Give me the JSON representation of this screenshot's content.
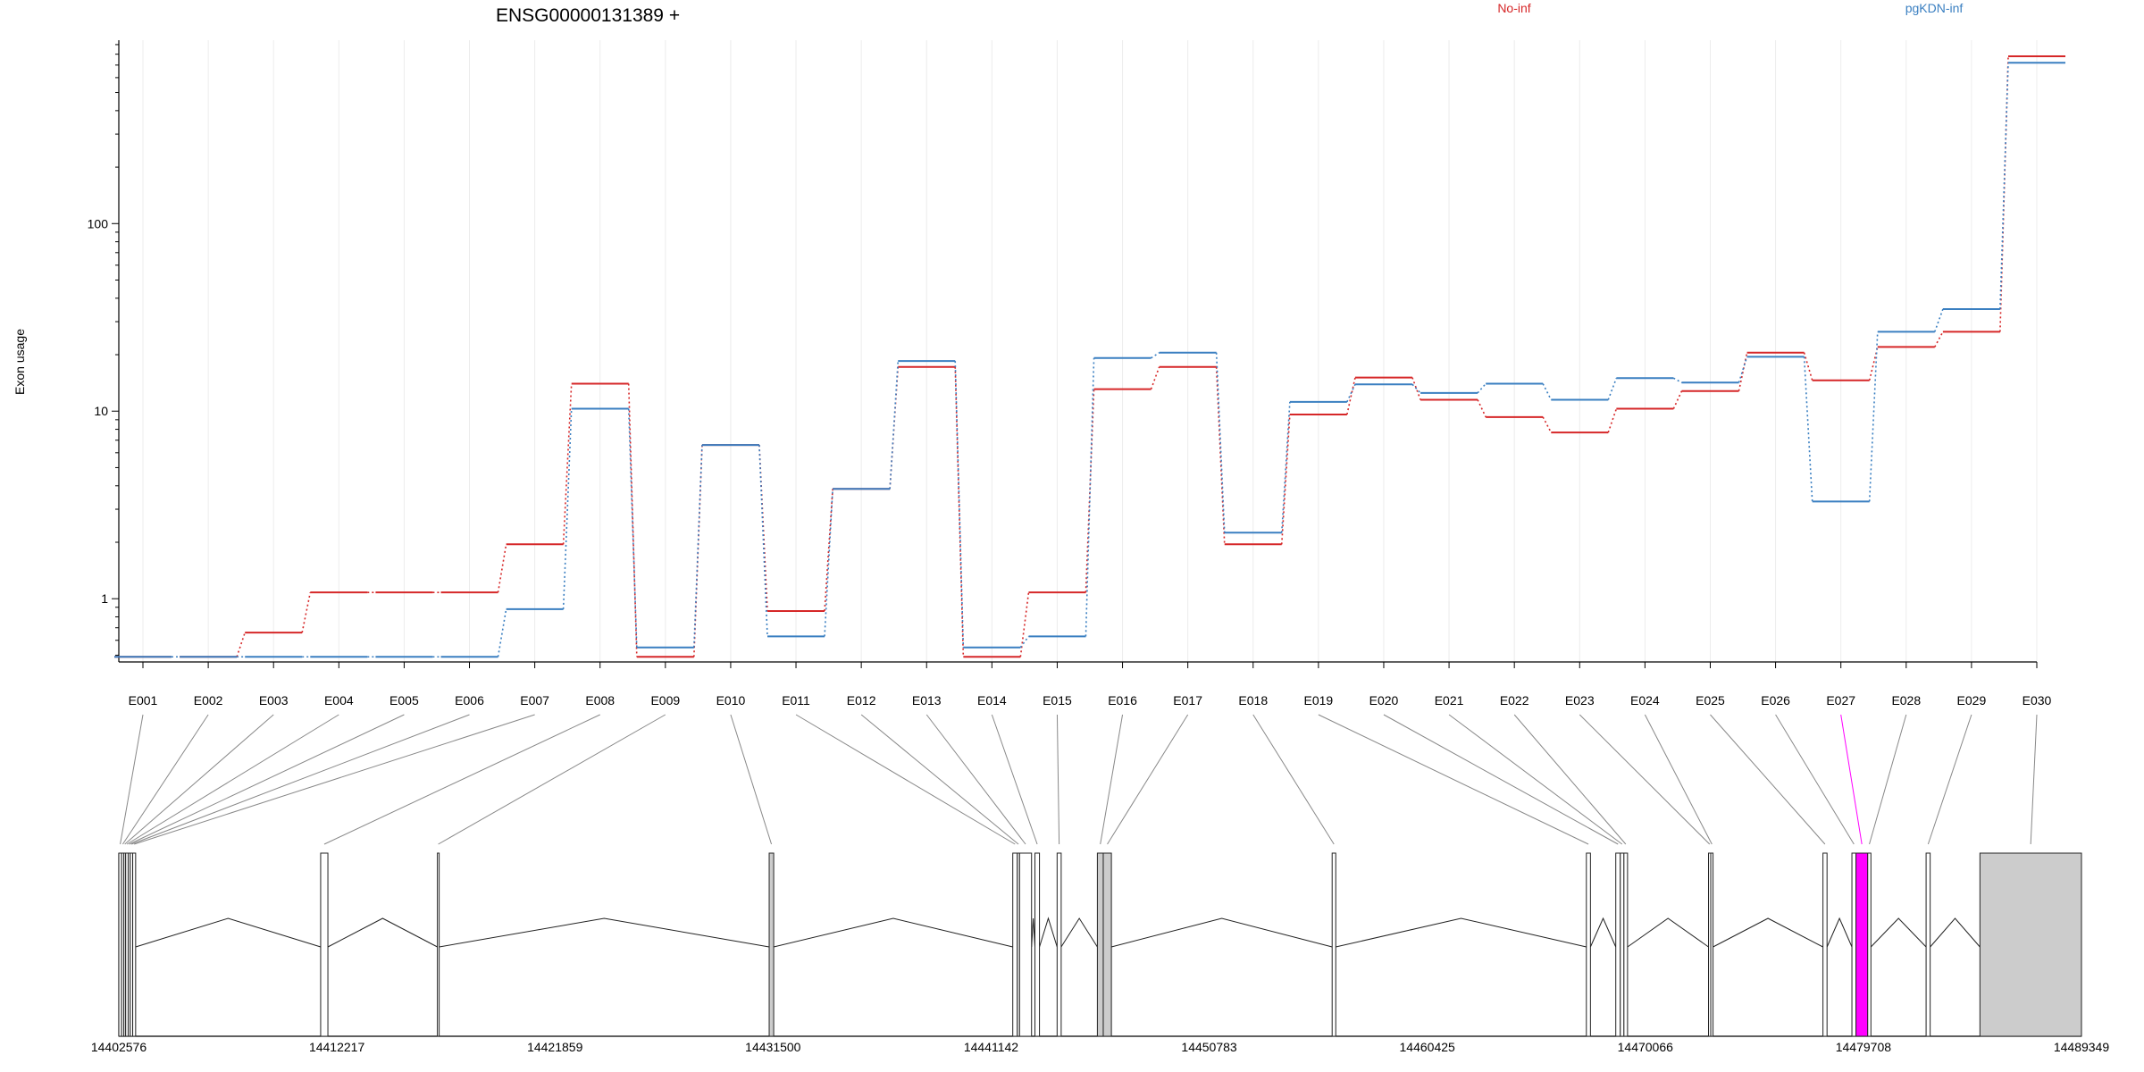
{
  "chart_data": {
    "type": "line",
    "title": "ENSG00000131389 +",
    "ylabel": "Exon usage",
    "yscale": "log",
    "yticks": [
      1,
      10,
      100
    ],
    "ylim": [
      0.46,
      950
    ],
    "grid": "x",
    "categories": [
      "E001",
      "E002",
      "E003",
      "E004",
      "E005",
      "E006",
      "E007",
      "E008",
      "E009",
      "E010",
      "E011",
      "E012",
      "E013",
      "E014",
      "E015",
      "E016",
      "E017",
      "E018",
      "E019",
      "E020",
      "E021",
      "E022",
      "E023",
      "E024",
      "E025",
      "E026",
      "E027",
      "E028",
      "E029",
      "E030"
    ],
    "highlight_exon": "E027",
    "series": [
      {
        "name": "No-inf",
        "color": "#d62728",
        "values": [
          0.49,
          0.49,
          0.66,
          1.08,
          1.08,
          1.08,
          1.95,
          14.0,
          0.49,
          6.6,
          0.86,
          3.85,
          17.2,
          0.49,
          1.08,
          13.1,
          17.2,
          1.95,
          9.6,
          15.1,
          11.5,
          9.3,
          7.7,
          10.3,
          12.8,
          20.5,
          14.6,
          22.0,
          26.5,
          780
        ]
      },
      {
        "name": "pgKDN-inf",
        "color": "#3a7fc1",
        "values": [
          0.49,
          0.49,
          0.49,
          0.49,
          0.49,
          0.49,
          0.88,
          10.3,
          0.55,
          6.6,
          0.63,
          3.85,
          18.5,
          0.55,
          0.63,
          19.2,
          20.5,
          2.25,
          11.2,
          13.9,
          12.5,
          14.0,
          11.5,
          15.0,
          14.2,
          19.5,
          3.3,
          26.5,
          35.0,
          720
        ]
      }
    ],
    "gene_model": {
      "axis_labels": [
        "14402576",
        "14412217",
        "14421859",
        "14431500",
        "14441142",
        "14450783",
        "14460425",
        "14470066",
        "14479708",
        "14489349"
      ],
      "exons": [
        {
          "id": "E001",
          "start": 14402576,
          "end": 14402700,
          "fill": "#ffffff"
        },
        {
          "id": "E002",
          "start": 14402700,
          "end": 14402800,
          "fill": "#ffffff"
        },
        {
          "id": "E003",
          "start": 14402800,
          "end": 14402880,
          "fill": "#ffffff"
        },
        {
          "id": "E004",
          "start": 14402880,
          "end": 14402990,
          "fill": "#ffffff"
        },
        {
          "id": "E005",
          "start": 14402990,
          "end": 14403080,
          "fill": "#ffffff"
        },
        {
          "id": "E006",
          "start": 14403080,
          "end": 14403190,
          "fill": "#ffffff"
        },
        {
          "id": "E007",
          "start": 14403190,
          "end": 14403320,
          "fill": "#ffffff"
        },
        {
          "id": "E008",
          "start": 14411500,
          "end": 14411820,
          "fill": "#ffffff"
        },
        {
          "id": "E009",
          "start": 14416660,
          "end": 14416740,
          "fill": "#ffffff"
        },
        {
          "id": "E010",
          "start": 14431330,
          "end": 14431530,
          "fill": "#cccccc"
        },
        {
          "id": "E011",
          "start": 14442100,
          "end": 14442300,
          "fill": "#ffffff"
        },
        {
          "id": "E012",
          "start": 14442300,
          "end": 14442400,
          "fill": "#ffffff"
        },
        {
          "id": "E013",
          "start": 14442400,
          "end": 14442930,
          "fill": "#ffffff"
        },
        {
          "id": "E014",
          "start": 14443080,
          "end": 14443280,
          "fill": "#ffffff"
        },
        {
          "id": "E015",
          "start": 14444060,
          "end": 14444240,
          "fill": "#ffffff"
        },
        {
          "id": "E016",
          "start": 14445840,
          "end": 14446100,
          "fill": "#cccccc"
        },
        {
          "id": "E017",
          "start": 14446100,
          "end": 14446460,
          "fill": "#cccccc"
        },
        {
          "id": "E018",
          "start": 14456220,
          "end": 14456380,
          "fill": "#ffffff"
        },
        {
          "id": "E019",
          "start": 14467460,
          "end": 14467640,
          "fill": "#ffffff"
        },
        {
          "id": "E020",
          "start": 14468760,
          "end": 14468960,
          "fill": "#ffffff"
        },
        {
          "id": "E021",
          "start": 14468960,
          "end": 14469120,
          "fill": "#ffffff"
        },
        {
          "id": "E022",
          "start": 14469120,
          "end": 14469280,
          "fill": "#ffffff"
        },
        {
          "id": "E023",
          "start": 14472860,
          "end": 14472960,
          "fill": "#ffffff"
        },
        {
          "id": "E024",
          "start": 14472960,
          "end": 14473060,
          "fill": "#ffffff"
        },
        {
          "id": "E025",
          "start": 14477920,
          "end": 14478100,
          "fill": "#ffffff"
        },
        {
          "id": "E026",
          "start": 14479200,
          "end": 14479380,
          "fill": "#ffffff"
        },
        {
          "id": "E027",
          "start": 14479380,
          "end": 14479900,
          "fill": "#ff00ff"
        },
        {
          "id": "E028",
          "start": 14479900,
          "end": 14480040,
          "fill": "#ffffff"
        },
        {
          "id": "E029",
          "start": 14482480,
          "end": 14482660,
          "fill": "#ffffff"
        },
        {
          "id": "E030",
          "start": 14484860,
          "end": 14489349,
          "fill": "#cccccc"
        }
      ]
    }
  }
}
